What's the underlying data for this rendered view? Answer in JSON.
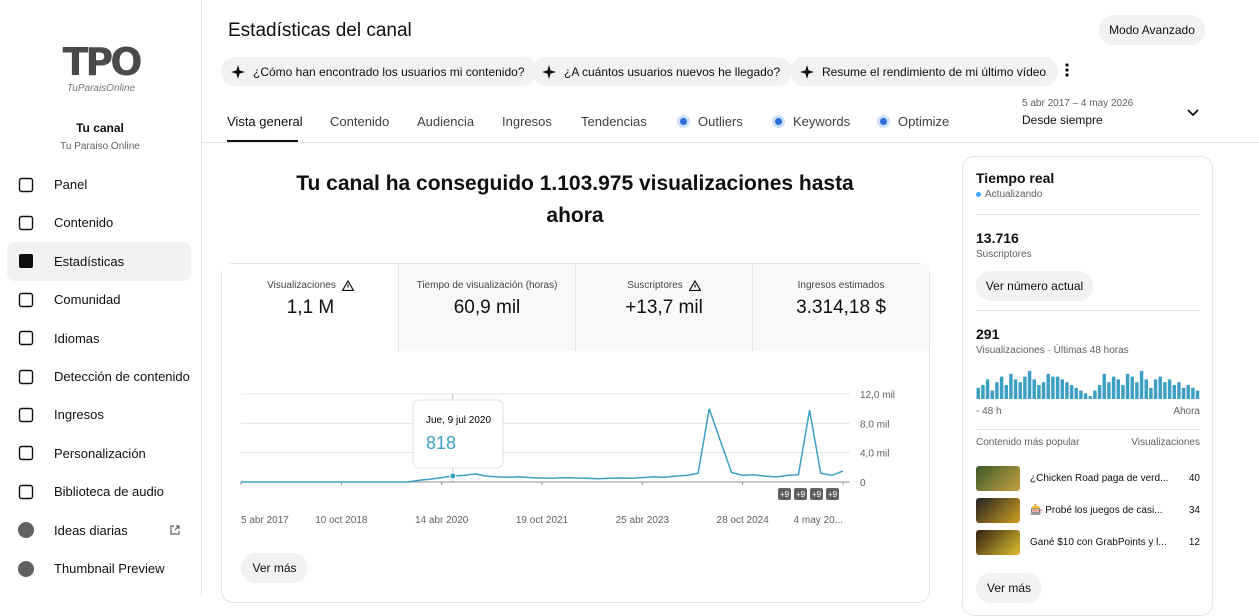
{
  "sidebar": {
    "logo": "TPO",
    "logo_sub": "TuParaisOnline",
    "channel_title": "Tu canal",
    "channel_name": "Tu Paraiso Online",
    "nav": [
      "Panel",
      "Contenido",
      "Estadísticas",
      "Comunidad",
      "Idiomas",
      "Detección de contenido",
      "Ingresos",
      "Personalización",
      "Biblioteca de audio",
      "Ideas diarias",
      "Thumbnail Preview"
    ]
  },
  "header": {
    "title": "Estadísticas del canal",
    "advanced_button": "Modo Avanzado",
    "suggestions": [
      "¿Cómo han encontrado los usuarios mi contenido?",
      "¿A cuántos usuarios nuevos he llegado?",
      "Resume el rendimiento de mi último vídeo"
    ],
    "tabs": [
      "Vista general",
      "Contenido",
      "Audiencia",
      "Ingresos",
      "Tendencias",
      "Outliers",
      "Keywords",
      "Optimize"
    ],
    "date_range": "5 abr 2017 – 4 may 2026",
    "date_label": "Desde siempre"
  },
  "summary": {
    "headline": "Tu canal ha conseguido 1.103.975 visualizaciones hasta ahora",
    "metrics": [
      {
        "label": "Visualizaciones",
        "value": "1,1 M"
      },
      {
        "label": "Tiempo de visualización (horas)",
        "value": "60,9 mil"
      },
      {
        "label": "Suscriptores",
        "value": "+13,7 mil"
      },
      {
        "label": "Ingresos estimados",
        "value": "3.314,18 $"
      }
    ]
  },
  "chart": {
    "type": "line",
    "color": "#3d9fc4",
    "values": [
      0,
      0,
      0,
      0,
      0,
      0,
      0,
      0,
      0,
      0,
      0,
      0,
      0,
      0,
      0,
      0,
      250,
      400,
      600,
      818,
      900,
      1100,
      800,
      700,
      650,
      700,
      600,
      550,
      500,
      600,
      550,
      500,
      450,
      500,
      550,
      500,
      600,
      700,
      650,
      800,
      900,
      1200,
      10000,
      5600,
      1300,
      900,
      1000,
      800,
      700,
      900,
      1000,
      9800,
      1200,
      900,
      1500
    ],
    "ylim": [
      0,
      12000
    ],
    "yticks": [
      0,
      {
        "value": 4000,
        "label": "4,0 mil"
      },
      {
        "value": 8000,
        "label": "8,0 mil"
      },
      {
        "value": 12000,
        "label": "12,0 mil"
      }
    ],
    "xticks": [
      {
        "value": 0,
        "label": "5 abr 2017"
      },
      {
        "value": 9,
        "label": "10 oct 2018"
      },
      {
        "value": 18,
        "label": "14 abr 2020"
      },
      {
        "value": 27,
        "label": "19 oct 2021"
      },
      {
        "value": 36,
        "label": "25 abr 2023"
      },
      {
        "value": 45,
        "label": "28 oct 2024"
      },
      {
        "value": 54,
        "label": "4 may 20..."
      }
    ],
    "grid": true,
    "tooltip": {
      "date": "Jue, 9 jul 2020",
      "value": 818
    },
    "markers": [
      "+9",
      "+9",
      "+9",
      "+9"
    ],
    "more_button": "Ver más"
  },
  "realtime": {
    "title": "Tiempo real",
    "status": "Actualizando",
    "subscribers": "13.716",
    "subscribers_label": "Suscriptores",
    "current_button": "Ver número actual",
    "views": "291",
    "views_label": "Visualizaciones · Últimas 48 horas",
    "bars": {
      "type": "bar",
      "color": "#3d9fc4",
      "values": [
        4,
        5,
        7,
        3,
        6,
        8,
        5,
        9,
        7,
        6,
        8,
        10,
        7,
        5,
        6,
        9,
        8,
        8,
        7,
        6,
        5,
        4,
        3,
        2,
        1,
        3,
        5,
        9,
        6,
        8,
        7,
        5,
        9,
        8,
        6,
        10,
        7,
        4,
        7,
        8,
        6,
        7,
        5,
        6,
        4,
        5,
        4,
        3
      ],
      "start_label": "- 48 h",
      "end_label": "Ahora"
    },
    "popular_label": "Contenido más popular",
    "popular_metric": "Visualizaciones",
    "popular": [
      {
        "title": "¿Chicken Road paga de verd...",
        "views": 40
      },
      {
        "title": "🎰 Probé los juegos de casi...",
        "views": 34
      },
      {
        "title": "Gané $10 con GrabPoints y l...",
        "views": 12
      }
    ],
    "more_button": "Ver más"
  }
}
